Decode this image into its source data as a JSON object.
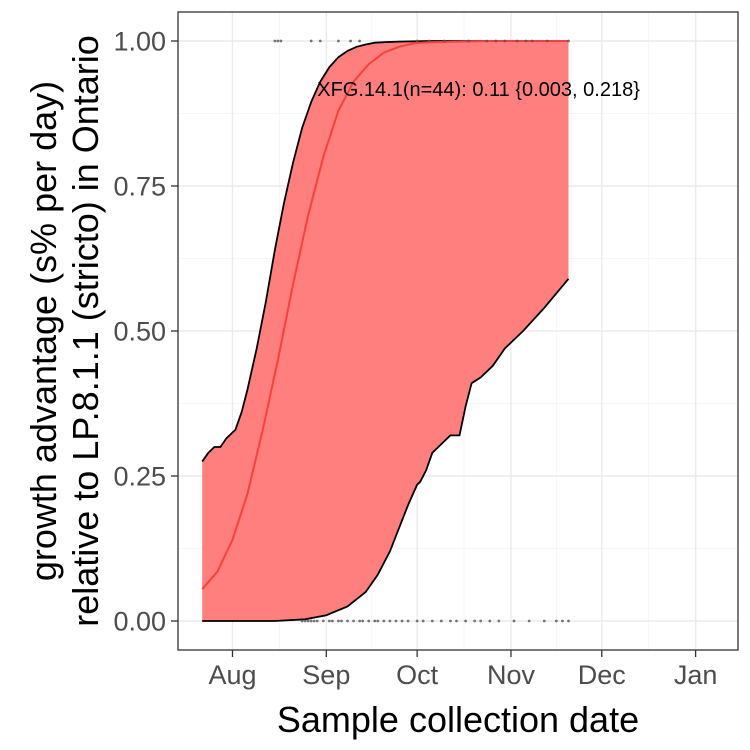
{
  "chart_data": {
    "type": "line",
    "xlabel": "Sample collection date",
    "ylabel_line1": "growth advantage (s% per day)",
    "ylabel_line2": "relative to LP.8.1.1 (stricto) in Ontario",
    "x_ticks": [
      "Aug",
      "Sep",
      "Oct",
      "Nov",
      "Dec",
      "Jan"
    ],
    "x_tick_dates": [
      "2025-08-01",
      "2025-09-01",
      "2025-10-01",
      "2025-11-01",
      "2025-12-01",
      "2026-01-01"
    ],
    "xlim": [
      "2025-07-14",
      "2026-01-15"
    ],
    "y_ticks": [
      "0.00",
      "0.25",
      "0.50",
      "0.75",
      "1.00"
    ],
    "y_tick_values": [
      0,
      0.25,
      0.5,
      0.75,
      1.0
    ],
    "ylim": [
      -0.05,
      1.05
    ],
    "grid": true,
    "annotation": {
      "text": "XFG.14.1(n=44): 0.11 {0.003, 0.218}",
      "x": "2025-08-29",
      "y": 0.905
    },
    "series": [
      {
        "name": "",
        "role": "fit",
        "color": "#f8413a",
        "x": [
          "2025-07-22",
          "2025-07-27",
          "2025-08-01",
          "2025-08-06",
          "2025-08-11",
          "2025-08-16",
          "2025-08-21",
          "2025-08-26",
          "2025-08-31",
          "2025-09-05",
          "2025-09-10",
          "2025-09-15",
          "2025-09-20",
          "2025-09-25",
          "2025-09-30",
          "2025-10-05",
          "2025-10-15",
          "2025-10-25",
          "2025-11-05",
          "2025-11-20"
        ],
        "y": [
          0.055,
          0.085,
          0.14,
          0.22,
          0.33,
          0.45,
          0.58,
          0.7,
          0.8,
          0.88,
          0.93,
          0.96,
          0.98,
          0.99,
          0.996,
          0.998,
          0.999,
          1.0,
          1.0,
          1.0
        ]
      },
      {
        "name": "",
        "role": "ci_upper",
        "color": "#000000",
        "x": [
          "2025-07-22",
          "2025-07-24",
          "2025-07-26",
          "2025-07-28",
          "2025-07-30",
          "2025-08-02",
          "2025-08-04",
          "2025-08-06",
          "2025-08-09",
          "2025-08-12",
          "2025-08-15",
          "2025-08-18",
          "2025-08-21",
          "2025-08-24",
          "2025-08-27",
          "2025-08-30",
          "2025-09-02",
          "2025-09-05",
          "2025-09-08",
          "2025-09-11",
          "2025-09-14",
          "2025-09-17",
          "2025-09-20",
          "2025-09-25",
          "2025-10-05",
          "2025-10-20",
          "2025-11-20"
        ],
        "y": [
          0.275,
          0.29,
          0.3,
          0.3,
          0.315,
          0.33,
          0.36,
          0.4,
          0.47,
          0.55,
          0.64,
          0.72,
          0.79,
          0.85,
          0.895,
          0.93,
          0.955,
          0.972,
          0.983,
          0.99,
          0.994,
          0.997,
          0.998,
          0.999,
          1.0,
          1.0,
          1.0
        ]
      },
      {
        "name": "",
        "role": "ci_lower",
        "color": "#000000",
        "x": [
          "2025-07-22",
          "2025-08-15",
          "2025-08-25",
          "2025-09-01",
          "2025-09-08",
          "2025-09-14",
          "2025-09-18",
          "2025-09-22",
          "2025-09-25",
          "2025-09-28",
          "2025-10-01",
          "2025-10-02",
          "2025-10-04",
          "2025-10-06",
          "2025-10-08",
          "2025-10-12",
          "2025-10-15",
          "2025-10-17",
          "2025-10-19",
          "2025-10-22",
          "2025-10-26",
          "2025-10-30",
          "2025-11-05",
          "2025-11-12",
          "2025-11-20"
        ],
        "y": [
          0.0,
          0.0,
          0.003,
          0.01,
          0.025,
          0.05,
          0.08,
          0.12,
          0.16,
          0.2,
          0.235,
          0.24,
          0.26,
          0.29,
          0.3,
          0.32,
          0.32,
          0.37,
          0.41,
          0.42,
          0.44,
          0.47,
          0.5,
          0.54,
          0.59
        ]
      }
    ],
    "ribbon_color": "#ff7f7f",
    "observations": [
      {
        "x": "2025-08-15",
        "y": 1.0
      },
      {
        "x": "2025-08-16",
        "y": 1.0
      },
      {
        "x": "2025-08-17",
        "y": 1.0
      },
      {
        "x": "2025-08-27",
        "y": 1.0
      },
      {
        "x": "2025-08-30",
        "y": 1.0
      },
      {
        "x": "2025-09-05",
        "y": 1.0
      },
      {
        "x": "2025-09-09",
        "y": 1.0
      },
      {
        "x": "2025-09-12",
        "y": 1.0
      },
      {
        "x": "2025-10-01",
        "y": 1.0
      },
      {
        "x": "2025-10-05",
        "y": 1.0
      },
      {
        "x": "2025-10-10",
        "y": 1.0
      },
      {
        "x": "2025-10-18",
        "y": 1.0
      },
      {
        "x": "2025-10-24",
        "y": 1.0
      },
      {
        "x": "2025-10-27",
        "y": 1.0
      },
      {
        "x": "2025-10-30",
        "y": 1.0
      },
      {
        "x": "2025-11-03",
        "y": 1.0
      },
      {
        "x": "2025-11-06",
        "y": 1.0
      },
      {
        "x": "2025-11-08",
        "y": 1.0
      },
      {
        "x": "2025-11-13",
        "y": 1.0
      },
      {
        "x": "2025-11-20",
        "y": 1.0
      },
      {
        "x": "2025-08-24",
        "y": 0.0
      },
      {
        "x": "2025-08-25",
        "y": 0.0
      },
      {
        "x": "2025-08-26",
        "y": 0.0
      },
      {
        "x": "2025-08-27",
        "y": 0.0
      },
      {
        "x": "2025-08-28",
        "y": 0.0
      },
      {
        "x": "2025-08-29",
        "y": 0.0
      },
      {
        "x": "2025-08-31",
        "y": 0.0
      },
      {
        "x": "2025-09-02",
        "y": 0.0
      },
      {
        "x": "2025-09-03",
        "y": 0.0
      },
      {
        "x": "2025-09-05",
        "y": 0.0
      },
      {
        "x": "2025-09-06",
        "y": 0.0
      },
      {
        "x": "2025-09-08",
        "y": 0.0
      },
      {
        "x": "2025-09-10",
        "y": 0.0
      },
      {
        "x": "2025-09-12",
        "y": 0.0
      },
      {
        "x": "2025-09-13",
        "y": 0.0
      },
      {
        "x": "2025-09-15",
        "y": 0.0
      },
      {
        "x": "2025-09-17",
        "y": 0.0
      },
      {
        "x": "2025-09-18",
        "y": 0.0
      },
      {
        "x": "2025-09-20",
        "y": 0.0
      },
      {
        "x": "2025-09-22",
        "y": 0.0
      },
      {
        "x": "2025-09-24",
        "y": 0.0
      },
      {
        "x": "2025-09-26",
        "y": 0.0
      },
      {
        "x": "2025-09-28",
        "y": 0.0
      },
      {
        "x": "2025-10-01",
        "y": 0.0
      },
      {
        "x": "2025-10-03",
        "y": 0.0
      },
      {
        "x": "2025-10-06",
        "y": 0.0
      },
      {
        "x": "2025-10-09",
        "y": 0.0
      },
      {
        "x": "2025-10-12",
        "y": 0.0
      },
      {
        "x": "2025-10-14",
        "y": 0.0
      },
      {
        "x": "2025-10-17",
        "y": 0.0
      },
      {
        "x": "2025-10-20",
        "y": 0.0
      },
      {
        "x": "2025-10-22",
        "y": 0.0
      },
      {
        "x": "2025-10-25",
        "y": 0.0
      },
      {
        "x": "2025-10-28",
        "y": 0.0
      },
      {
        "x": "2025-11-02",
        "y": 0.0
      },
      {
        "x": "2025-11-07",
        "y": 0.0
      },
      {
        "x": "2025-11-12",
        "y": 0.0
      },
      {
        "x": "2025-11-16",
        "y": 0.0
      },
      {
        "x": "2025-11-18",
        "y": 0.0
      },
      {
        "x": "2025-11-20",
        "y": 0.0
      }
    ]
  }
}
